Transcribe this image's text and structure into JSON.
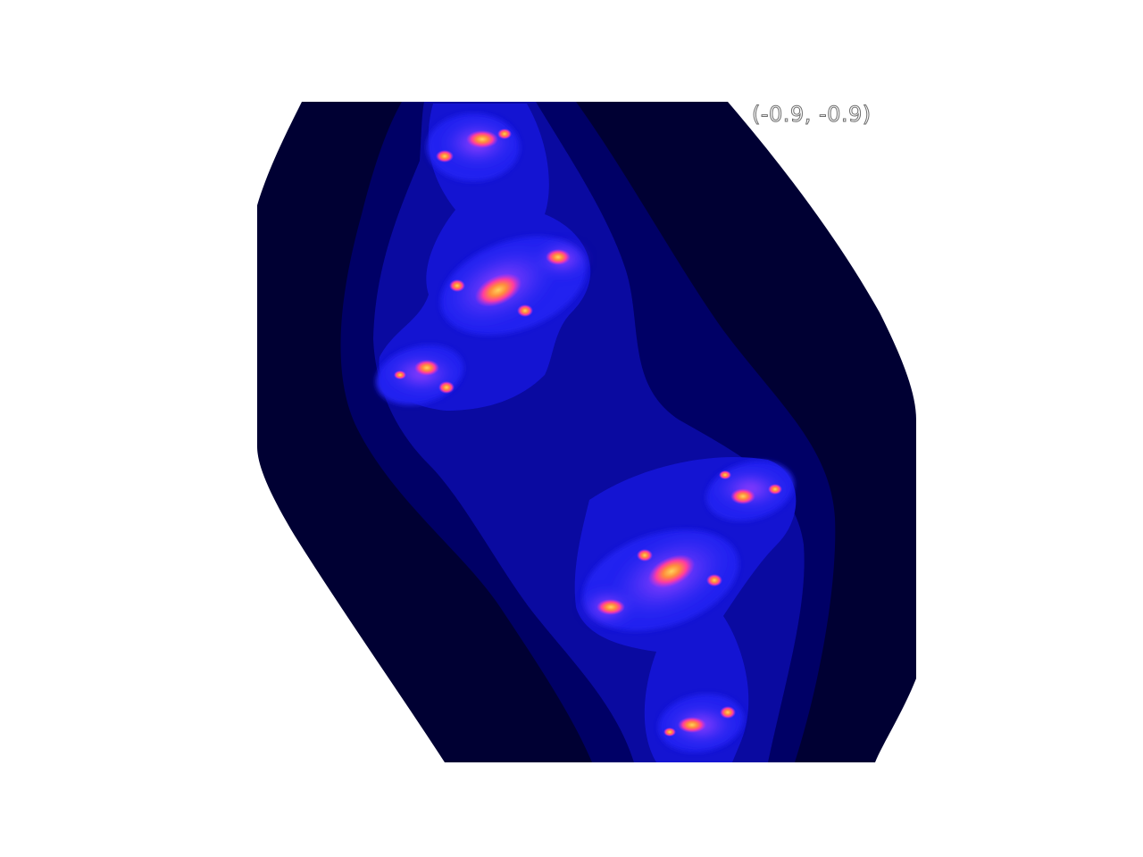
{
  "view": {
    "coordinate_label": "(-0.9, -0.9)"
  },
  "colors": {
    "background": "#ffffff",
    "escape_level_0": "#000033",
    "escape_level_1": "#000066",
    "escape_level_2": "#0a0aa0",
    "escape_level_3": "#1414d2",
    "escape_level_4": "#2222f0",
    "escape_level_5": "#4a3cff",
    "core_magenta": "#c830e6",
    "core_pink": "#ff3ca0",
    "core_orange": "#ff8c3c",
    "core_yellow": "#ffd25a"
  }
}
